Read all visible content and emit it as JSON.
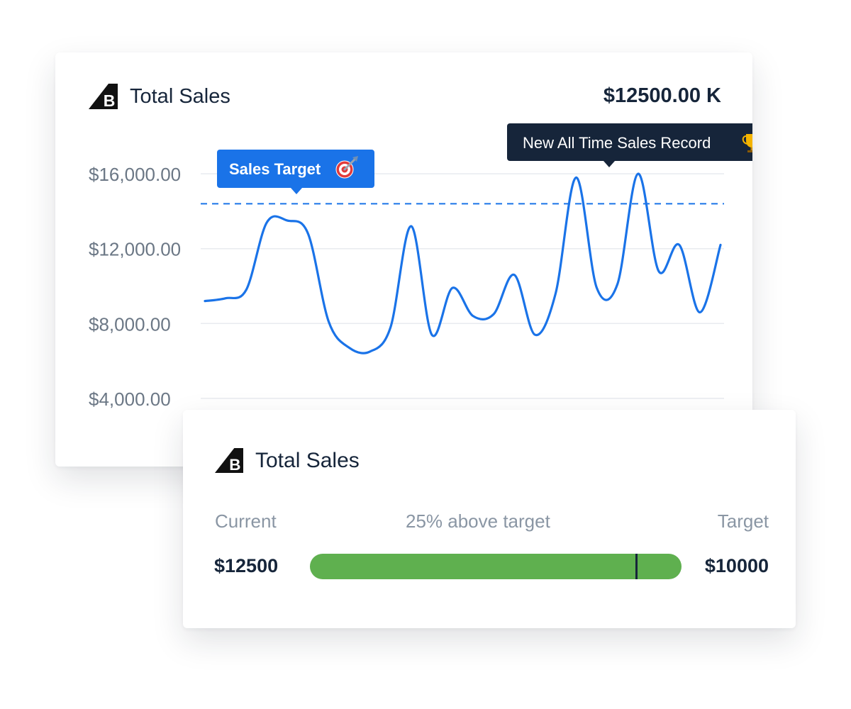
{
  "chart_card": {
    "title": "Total Sales",
    "total_value": "$12500.00 K",
    "logo_icon": "bigcommerce-logo-icon"
  },
  "chart_data": {
    "type": "line",
    "title": "Total Sales",
    "xlabel": "",
    "ylabel": "",
    "ylim": [
      3200,
      16800
    ],
    "y_ticks": [
      4000,
      8000,
      12000,
      16000
    ],
    "y_tick_labels": [
      "$16,000.00",
      "$12,000.00",
      "$8,000.00",
      "$4,000.00"
    ],
    "grid": true,
    "target_value": 14400,
    "series": [
      {
        "color": "#1a73e8",
        "values": [
          9200,
          9350,
          9800,
          13400,
          13500,
          12800,
          8100,
          6700,
          6500,
          7800,
          13200,
          7400,
          9900,
          8400,
          8500,
          10600,
          7400,
          9600,
          15800,
          9900,
          10100,
          16000,
          10800,
          12200,
          8600,
          12200
        ]
      }
    ],
    "annotations": [
      {
        "label": "Sales Target",
        "icon": "dart-target-icon",
        "points_to": "target_value"
      },
      {
        "label": "New All Time Sales Record",
        "icon": "trophy-icon",
        "points_to": "max"
      }
    ]
  },
  "progress_card": {
    "title": "Total Sales",
    "logo_icon": "bigcommerce-logo-icon",
    "current_label": "Current",
    "status_label": "25% above target",
    "target_label": "Target",
    "current_value": "$12500",
    "target_value": "$10000",
    "current_amount": 12500,
    "target_amount": 10000,
    "bar_color": "#5fb04f"
  }
}
